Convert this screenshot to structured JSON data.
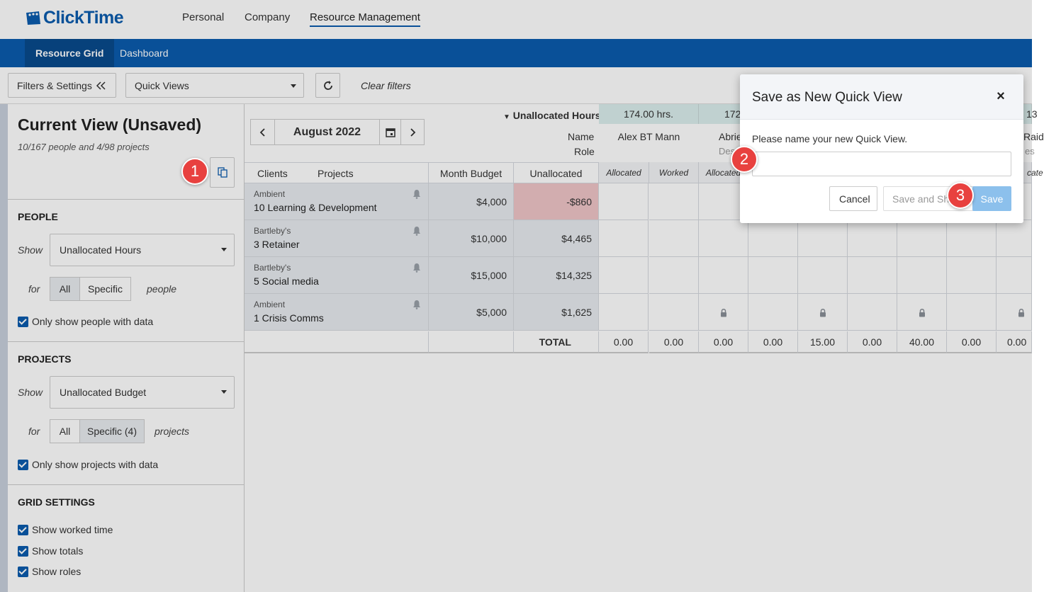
{
  "app": {
    "logo_text": "ClickTime"
  },
  "topnav": {
    "items": [
      "Personal",
      "Company",
      "Resource Management"
    ]
  },
  "subnav": {
    "tabs": [
      "Resource Grid",
      "Dashboard"
    ]
  },
  "toolbar": {
    "filters_label": "Filters & Settings",
    "quick_views_label": "Quick Views",
    "clear_filters": "Clear filters"
  },
  "left": {
    "title": "Current View (Unsaved)",
    "subtitle": "10/167 people and 4/98 projects",
    "people": {
      "heading": "PEOPLE",
      "show_label": "Show",
      "show_value": "Unallocated Hours",
      "for_label": "for",
      "seg_all": "All",
      "seg_specific": "Specific",
      "suffix": "people",
      "checkbox": "Only show people with data"
    },
    "projects": {
      "heading": "PROJECTS",
      "show_label": "Show",
      "show_value": "Unallocated Budget",
      "for_label": "for",
      "seg_all": "All",
      "seg_specific": "Specific (4)",
      "suffix": "projects",
      "checkbox": "Only show projects with data"
    },
    "grid_settings": {
      "heading": "GRID SETTINGS",
      "checkboxes": [
        "Show worked time",
        "Show totals",
        "Show roles"
      ]
    }
  },
  "grid": {
    "month": "August 2022",
    "unalloc_hours_label": "Unallocated Hours",
    "name_label": "Name",
    "role_label": "Role",
    "hours": [
      "174.00 hrs.",
      "172",
      "13"
    ],
    "people": [
      "Alex BT Mann",
      "Abrie",
      "Des",
      "Raid",
      "es"
    ],
    "col_headers": {
      "clients": "Clients",
      "projects": "Projects",
      "month_budget": "Month Budget",
      "unallocated": "Unallocated"
    },
    "sub_headers": [
      "Allocated",
      "Worked",
      "Allocated",
      "cate"
    ],
    "rows": [
      {
        "client": "Ambient",
        "project": "10 Learning & Development",
        "budget": "$4,000",
        "unallocated": "-$860",
        "negative": true
      },
      {
        "client": "Bartleby's",
        "project": "3 Retainer",
        "budget": "$10,000",
        "unallocated": "$4,465",
        "negative": false
      },
      {
        "client": "Bartleby's",
        "project": "5 Social media",
        "budget": "$15,000",
        "unallocated": "$14,325",
        "negative": false
      },
      {
        "client": "Ambient",
        "project": "1 Crisis Comms",
        "budget": "$5,000",
        "unallocated": "$1,625",
        "negative": false
      }
    ],
    "total_label": "TOTAL",
    "totals": [
      "0.00",
      "0.00",
      "0.00",
      "0.00",
      "15.00",
      "0.00",
      "40.00",
      "0.00",
      "0.00"
    ]
  },
  "modal": {
    "title": "Save as New Quick View",
    "close": "×",
    "prompt": "Please name your new Quick View.",
    "input_value": "",
    "cancel": "Cancel",
    "save_share": "Save and Share",
    "save": "Save"
  },
  "badges": [
    "1",
    "2",
    "3"
  ],
  "colors": {
    "brand": "#0b5cad",
    "badge": "#e8413f",
    "negative_cell": "#f0c5c8",
    "hours_cell": "#dbeeed"
  }
}
